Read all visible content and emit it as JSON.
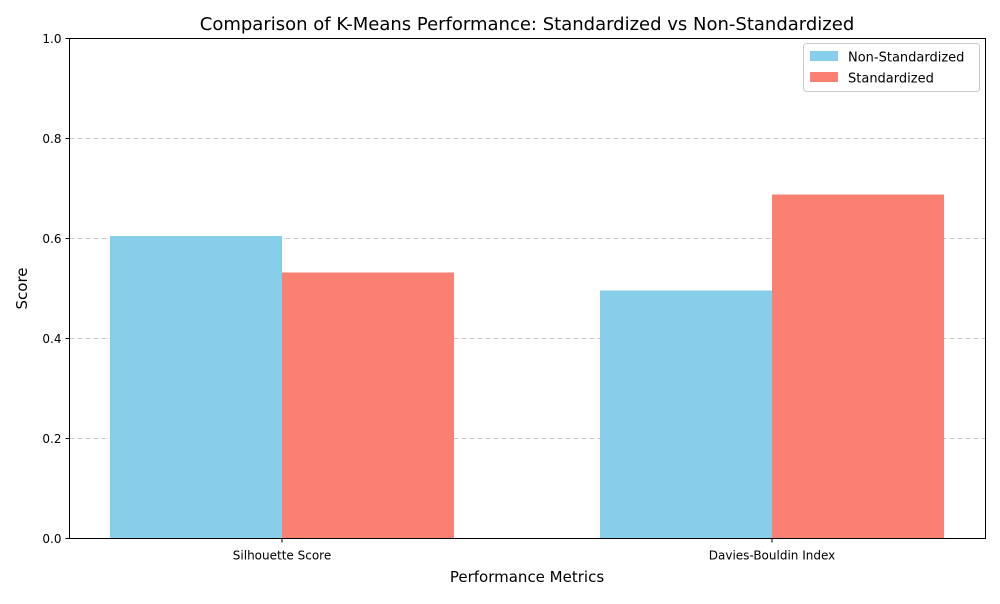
{
  "chart_data": {
    "type": "bar",
    "title": "Comparison of K-Means Performance: Standardized vs Non-Standardized",
    "xlabel": "Performance Metrics",
    "ylabel": "Score",
    "categories": [
      "Silhouette Score",
      "Davies-Bouldin Index"
    ],
    "series": [
      {
        "name": "Non-Standardized",
        "values": [
          0.605,
          0.496
        ],
        "color": "#87CEEB"
      },
      {
        "name": "Standardized",
        "values": [
          0.532,
          0.688
        ],
        "color": "#FA8072"
      }
    ],
    "ylim": [
      0,
      1
    ],
    "yticks": [
      "0.0",
      "0.2",
      "0.4",
      "0.6",
      "0.8",
      "1.0"
    ],
    "grid": "y-dashed",
    "legend_position": "top-right"
  }
}
